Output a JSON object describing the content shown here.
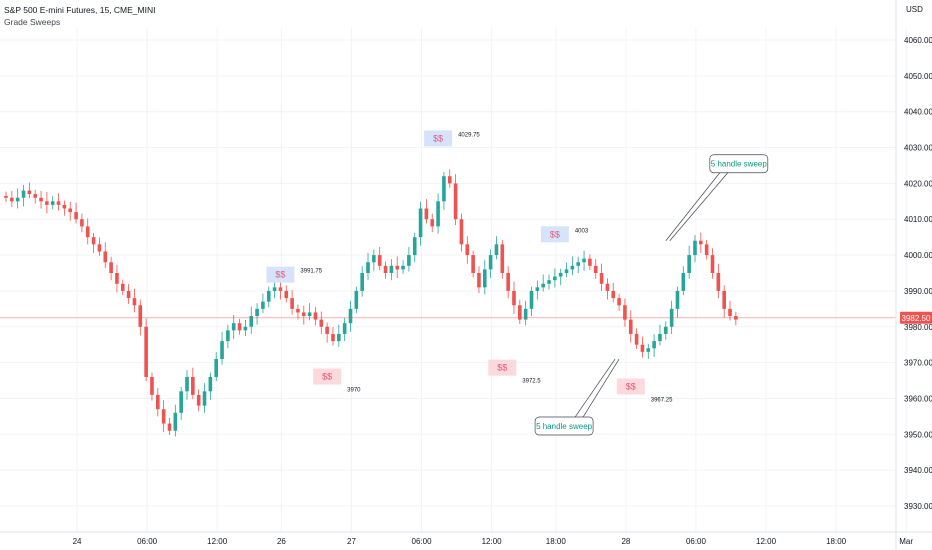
{
  "header": {
    "symbol_line": "S&P 500 E-mini Futures, 15, CME_MINI",
    "indicator": "Grade Sweeps",
    "currency": "USD"
  },
  "colors": {
    "up": "#26a69a",
    "down": "#ef5350",
    "sweep_high_box": "#d6e4fb",
    "sweep_low_box": "#fcd9dc",
    "sweep_text": "#e65a78",
    "price_line": "#ef5350",
    "callout_text": "#089981",
    "grid": "#f0f3fa"
  },
  "chart_data": {
    "type": "candlestick",
    "ylim": [
      3920,
      4070
    ],
    "y_ticks": [
      4060,
      4050,
      4040,
      4030,
      4020,
      4010,
      4000,
      3990,
      3980,
      3970,
      3960,
      3950,
      3940,
      3930
    ],
    "x_ticks": [
      {
        "label": "24",
        "i": 6
      },
      {
        "label": "06:00",
        "i": 18
      },
      {
        "label": "12:00",
        "i": 30
      },
      {
        "label": "26",
        "i": 41
      },
      {
        "label": "27",
        "i": 53
      },
      {
        "label": "06:00",
        "i": 65
      },
      {
        "label": "12:00",
        "i": 77
      },
      {
        "label": "18:00",
        "i": 88
      },
      {
        "label": "28",
        "i": 100
      },
      {
        "label": "06:00",
        "i": 112
      },
      {
        "label": "12:00",
        "i": 124
      },
      {
        "label": "18:00",
        "i": 136
      },
      {
        "label": "Mar",
        "i": 148
      }
    ],
    "last_price": "3982.50",
    "last_price_value": 3982.5,
    "closes": [
      4016,
      4015,
      4016,
      4018,
      4017,
      4016,
      4015,
      4014,
      4015,
      4014,
      4013,
      4012,
      4010,
      4008,
      4005,
      4003,
      4001,
      3998,
      3995,
      3992,
      3990,
      3988,
      3986,
      3980,
      3966,
      3961,
      3957,
      3953,
      3951,
      3956,
      3962,
      3966,
      3961,
      3958,
      3962,
      3966,
      3971,
      3976,
      3979,
      3981,
      3979,
      3980,
      3983,
      3985,
      3987,
      3990,
      3991,
      3990,
      3988,
      3985,
      3984,
      3983,
      3984,
      3982,
      3980,
      3978,
      3976,
      3978,
      3981,
      3985,
      3990,
      3995,
      3998,
      4000,
      3997,
      3995,
      3997,
      3996,
      3997,
      4000,
      4005,
      4013,
      4010,
      4008,
      4015,
      4022,
      4020,
      4010,
      4003,
      4000,
      3995,
      3991,
      3996,
      4000,
      4003,
      3995,
      3990,
      3986,
      3982,
      3985,
      3990,
      3991,
      3992,
      3993,
      3994,
      3995,
      3996,
      3997,
      3998,
      3999,
      3997,
      3995,
      3992,
      3990,
      3988,
      3986,
      3982,
      3978,
      3975,
      3973,
      3974,
      3976,
      3978,
      3980,
      3985,
      3990,
      3995,
      4000,
      4004,
      4003,
      4000,
      3995,
      3990,
      3985,
      3983,
      3982
    ],
    "sweep_highs": [
      {
        "label": "$$",
        "level": "3991.75",
        "i": 47,
        "value": 3991.75
      },
      {
        "label": "$$",
        "level": "4029.75",
        "i": 74,
        "value": 4029.75
      },
      {
        "label": "$$",
        "level": "4003",
        "i": 94,
        "value": 4003
      }
    ],
    "sweep_lows": [
      {
        "label": "$$",
        "level": "3970",
        "i": 55,
        "value": 3970
      },
      {
        "label": "$$",
        "level": "3972.5",
        "i": 85,
        "value": 3972.5
      },
      {
        "label": "$$",
        "level": "3967.25",
        "i": 107,
        "value": 3967.25
      }
    ],
    "callouts": [
      {
        "text": "5 handle sweep",
        "target": "high",
        "i": 113,
        "value": 4004
      },
      {
        "text": "5 handle sweep",
        "target": "low",
        "i": 105,
        "value": 3971
      }
    ]
  }
}
